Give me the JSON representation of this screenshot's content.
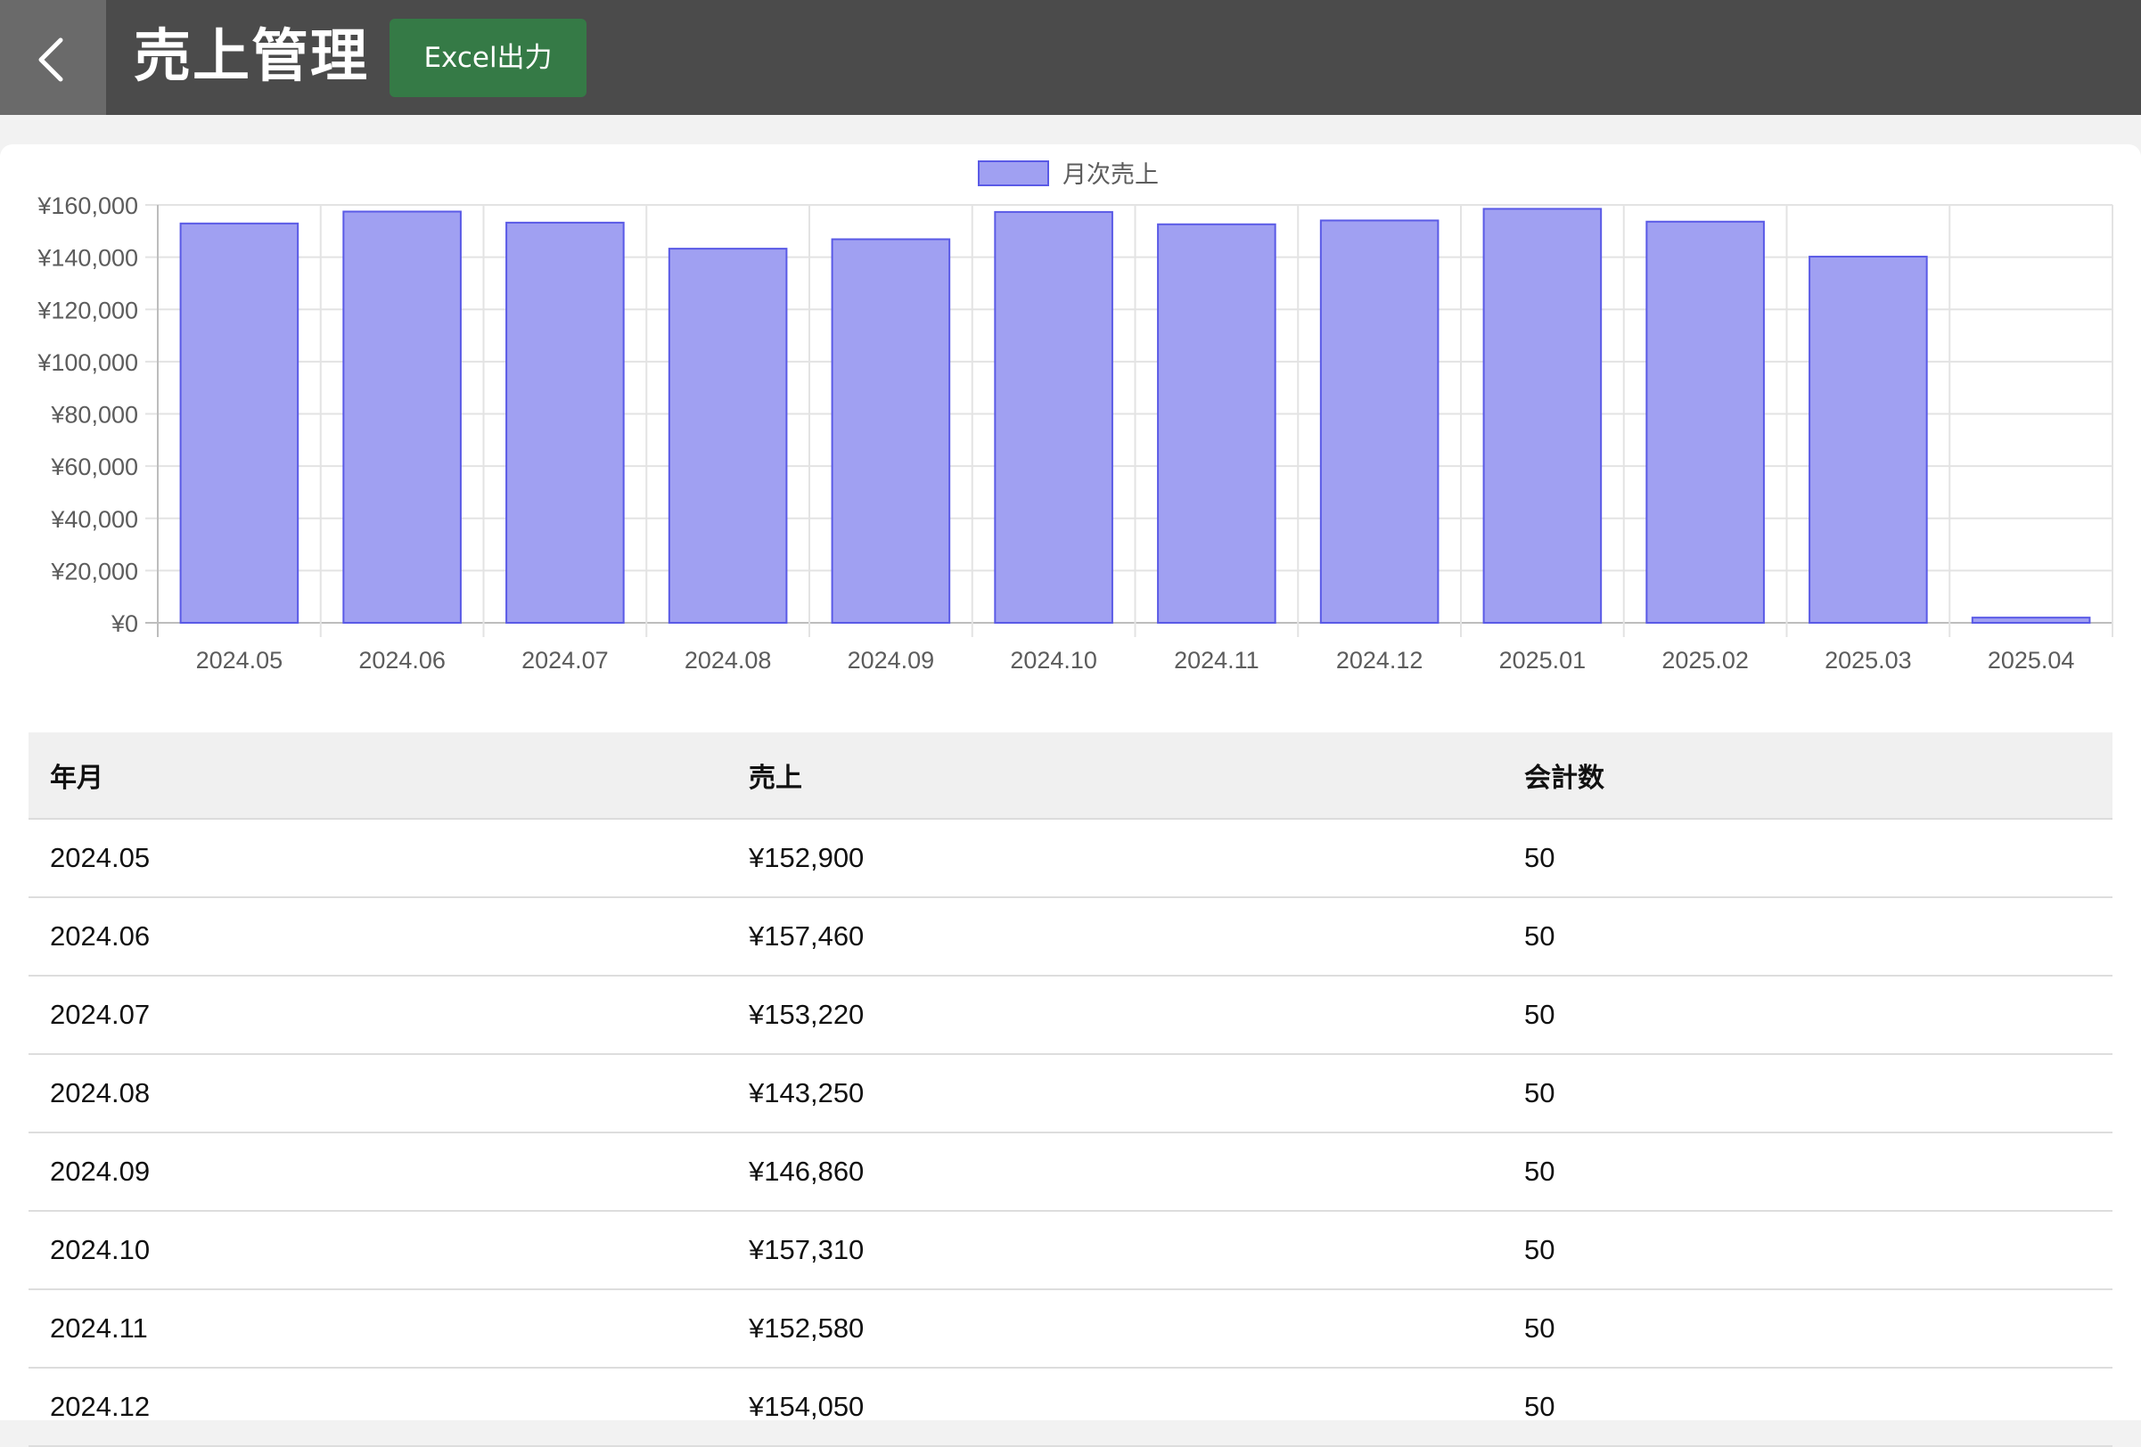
{
  "header": {
    "title": "売上管理",
    "export_label": "Excel出力",
    "back_icon": "chevron-left-icon"
  },
  "colors": {
    "header_bg": "#4b4b4b",
    "back_bg": "#6a6a6a",
    "excel_green": "#357a46",
    "bar_fill": "#a0a0f2",
    "bar_stroke": "#5a5ae6"
  },
  "chart_data": {
    "type": "bar",
    "categories": [
      "2024.05",
      "2024.06",
      "2024.07",
      "2024.08",
      "2024.09",
      "2024.10",
      "2024.11",
      "2024.12",
      "2025.01",
      "2025.02",
      "2025.03",
      "2025.04"
    ],
    "series": [
      {
        "name": "月次売上",
        "values": [
          152900,
          157460,
          153220,
          143250,
          146860,
          157310,
          152580,
          154050,
          158500,
          153600,
          140200,
          2000
        ]
      }
    ],
    "ylim": [
      0,
      160000
    ],
    "yticks": [
      0,
      20000,
      40000,
      60000,
      80000,
      100000,
      120000,
      140000,
      160000
    ],
    "ytick_labels": [
      "¥0",
      "¥20,000",
      "¥40,000",
      "¥60,000",
      "¥80,000",
      "¥100,000",
      "¥120,000",
      "¥140,000",
      "¥160,000"
    ],
    "legend_position": "top-center",
    "grid": true
  },
  "table": {
    "headers": [
      "年月",
      "売上",
      "会計数"
    ],
    "rows": [
      [
        "2024.05",
        "¥152,900",
        "50"
      ],
      [
        "2024.06",
        "¥157,460",
        "50"
      ],
      [
        "2024.07",
        "¥153,220",
        "50"
      ],
      [
        "2024.08",
        "¥143,250",
        "50"
      ],
      [
        "2024.09",
        "¥146,860",
        "50"
      ],
      [
        "2024.10",
        "¥157,310",
        "50"
      ],
      [
        "2024.11",
        "¥152,580",
        "50"
      ],
      [
        "2024.12",
        "¥154,050",
        "50"
      ]
    ]
  }
}
